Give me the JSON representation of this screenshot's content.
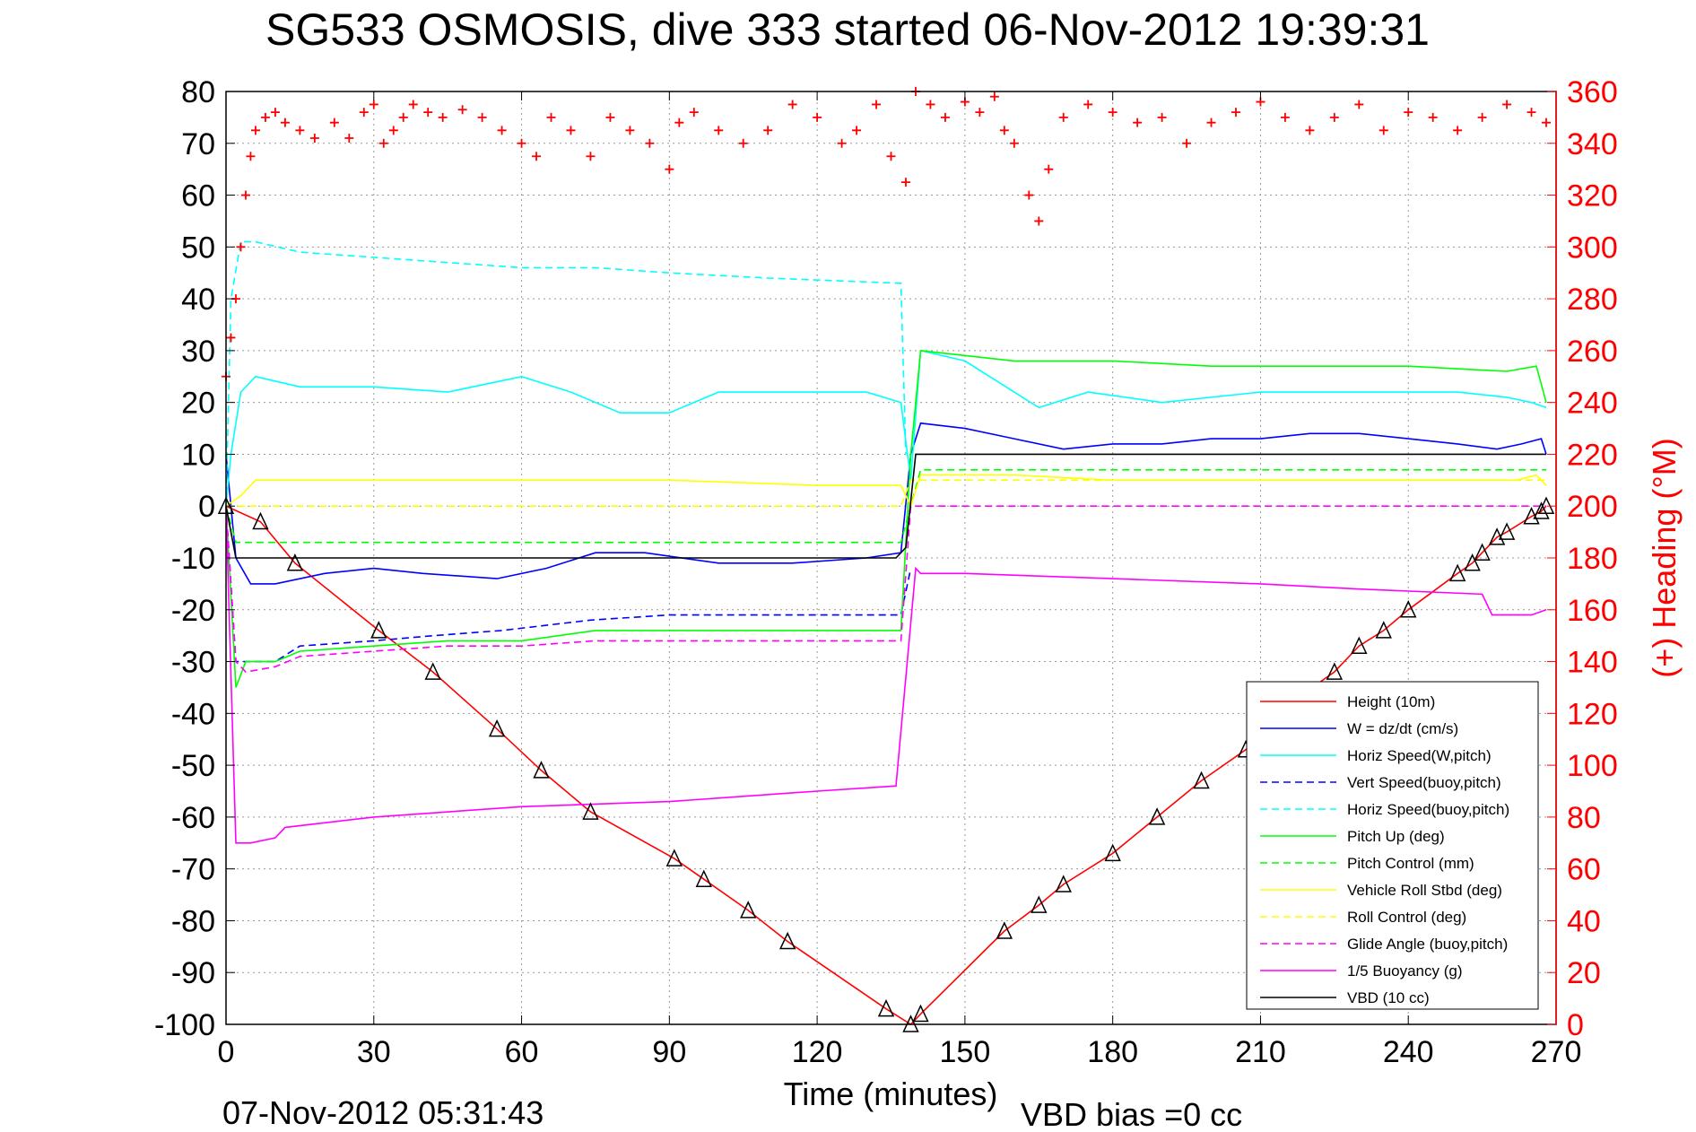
{
  "chart_data": {
    "type": "line",
    "title": "SG533 OSMOSIS, dive 333 started 06-Nov-2012 19:39:31",
    "xlabel": "Time (minutes)",
    "ylabel": "",
    "ylabel_right": "(+) Heading (°M)",
    "xlim": [
      0,
      270
    ],
    "ylim": [
      -100,
      80
    ],
    "ylim_right": [
      0,
      360
    ],
    "x_ticks": [
      0,
      30,
      60,
      90,
      120,
      150,
      180,
      210,
      240,
      270
    ],
    "y_ticks": [
      -100,
      -90,
      -80,
      -70,
      -60,
      -50,
      -40,
      -30,
      -20,
      -10,
      0,
      10,
      20,
      30,
      40,
      50,
      60,
      70,
      80
    ],
    "y_ticks_right": [
      0,
      20,
      40,
      60,
      80,
      100,
      120,
      140,
      160,
      180,
      200,
      220,
      240,
      260,
      280,
      300,
      320,
      340,
      360
    ],
    "grid": true,
    "legend_position": "bottom-right",
    "end_time_label": "07-Nov-2012 05:31:43",
    "vbd_bias_label": "VBD bias =0 cc",
    "series": [
      {
        "name": "Height (10m)",
        "color": "#ff0000",
        "style": "solid",
        "x": [
          0,
          7,
          14,
          31,
          42,
          55,
          64,
          74,
          91,
          97,
          106,
          114,
          134,
          139,
          141,
          158,
          165,
          170,
          180,
          189,
          198,
          207,
          216,
          225,
          230,
          235,
          240,
          250,
          253,
          255,
          258,
          260,
          265,
          267,
          268
        ],
        "y": [
          0,
          -3,
          -11,
          -24,
          -32,
          -43,
          -51,
          -59,
          -68,
          -72,
          -78,
          -84,
          -97,
          -100,
          -98,
          -82,
          -77,
          -73,
          -67,
          -60,
          -53,
          -47,
          -38,
          -32,
          -27,
          -24,
          -20,
          -13,
          -11,
          -9,
          -6,
          -5,
          -2,
          -1,
          0
        ]
      },
      {
        "name": "W = dz/dt (cm/s)",
        "color": "#0000ff",
        "style": "solid",
        "x": [
          0,
          2,
          5,
          10,
          20,
          30,
          40,
          55,
          65,
          75,
          85,
          100,
          115,
          130,
          137,
          139,
          141,
          150,
          160,
          170,
          180,
          190,
          200,
          210,
          220,
          230,
          240,
          250,
          258,
          263,
          267,
          268
        ],
        "y": [
          10,
          -10,
          -15,
          -15,
          -13,
          -12,
          -13,
          -14,
          -12,
          -9,
          -9,
          -11,
          -11,
          -10,
          -9,
          10,
          16,
          15,
          13,
          11,
          12,
          12,
          13,
          13,
          14,
          14,
          13,
          12,
          11,
          12,
          13,
          10
        ]
      },
      {
        "name": "Horiz Speed(W,pitch)",
        "color": "#00ffff",
        "style": "solid",
        "x": [
          0,
          1,
          3,
          6,
          15,
          30,
          45,
          60,
          70,
          80,
          90,
          100,
          115,
          130,
          137,
          139,
          141,
          150,
          160,
          165,
          175,
          190,
          210,
          230,
          250,
          260,
          265,
          268
        ],
        "y": [
          0,
          10,
          22,
          25,
          23,
          23,
          22,
          25,
          22,
          18,
          18,
          22,
          22,
          22,
          20,
          5,
          30,
          28,
          22,
          19,
          22,
          20,
          22,
          22,
          22,
          21,
          20,
          19
        ]
      },
      {
        "name": "Vert Speed(buoy,pitch)",
        "color": "#0000ff",
        "style": "dashed",
        "x": [
          0,
          2,
          4,
          10,
          15,
          30,
          42,
          56,
          74,
          90,
          110,
          137,
          139
        ],
        "y": [
          0,
          -30,
          -30,
          -30,
          -27,
          -26,
          -25,
          -24,
          -22,
          -21,
          -21,
          -21,
          -12
        ]
      },
      {
        "name": "Horiz Speed(buoy,pitch)",
        "color": "#00ffff",
        "style": "dashed",
        "x": [
          0,
          1,
          3,
          6,
          15,
          30,
          45,
          60,
          75,
          90,
          110,
          137,
          138
        ],
        "y": [
          0,
          40,
          51,
          51,
          49,
          48,
          47,
          46,
          46,
          45,
          44,
          43,
          10
        ]
      },
      {
        "name": "Pitch Up (deg)",
        "color": "#00ff00",
        "style": "solid",
        "x": [
          0,
          2,
          4,
          10,
          15,
          30,
          45,
          60,
          75,
          90,
          110,
          137,
          139,
          141,
          160,
          180,
          200,
          220,
          240,
          260,
          266,
          268
        ],
        "y": [
          0,
          -35,
          -30,
          -30,
          -28,
          -27,
          -26,
          -26,
          -24,
          -24,
          -24,
          -24,
          10,
          30,
          28,
          28,
          27,
          27,
          27,
          26,
          27,
          20
        ]
      },
      {
        "name": "Pitch Control (mm)",
        "color": "#00ff00",
        "style": "dashed",
        "x": [
          0,
          2,
          8,
          60,
          120,
          137,
          139,
          141,
          200,
          268
        ],
        "y": [
          0,
          -7,
          -7,
          -7,
          -7,
          -7,
          0,
          7,
          7,
          7
        ]
      },
      {
        "name": "Vehicle Roll Stbd (deg)",
        "color": "#ffff00",
        "style": "solid",
        "x": [
          0,
          3,
          6,
          30,
          60,
          90,
          120,
          137,
          139,
          141,
          160,
          180,
          200,
          230,
          250,
          262,
          266,
          268
        ],
        "y": [
          0,
          2,
          5,
          5,
          5,
          5,
          4,
          4,
          0,
          6,
          6,
          5,
          5,
          5,
          5,
          5,
          6,
          4
        ]
      },
      {
        "name": "Roll Control (deg)",
        "color": "#ffff00",
        "style": "dashed",
        "x": [
          0,
          137,
          139,
          268
        ],
        "y": [
          0,
          0,
          5,
          5
        ]
      },
      {
        "name": "Glide Angle (buoy,pitch)",
        "color": "#ff00ff",
        "style": "dashed",
        "x": [
          0,
          2,
          4,
          10,
          15,
          30,
          45,
          60,
          75,
          90,
          110,
          137,
          139,
          141,
          268
        ],
        "y": [
          0,
          -30,
          -32,
          -31,
          -29,
          -28,
          -27,
          -27,
          -26,
          -26,
          -26,
          -26,
          0,
          0,
          0
        ]
      },
      {
        "name": "1/5 Buoyancy (g)",
        "color": "#ff00ff",
        "style": "solid",
        "x": [
          0,
          2,
          5,
          10,
          12,
          30,
          60,
          90,
          120,
          136,
          140,
          141,
          150,
          180,
          210,
          230,
          255,
          257,
          265,
          268
        ],
        "y": [
          0,
          -65,
          -65,
          -64,
          -62,
          -60,
          -58,
          -57,
          -55,
          -54,
          -12,
          -13,
          -13,
          -14,
          -15,
          -16,
          -17,
          -21,
          -21,
          -20
        ]
      },
      {
        "name": "VBD (10 cc)",
        "color": "#000000",
        "style": "solid",
        "x": [
          0,
          2,
          4,
          136,
          138,
          140,
          141,
          268
        ],
        "y": [
          0,
          -10,
          -10,
          -10,
          -8,
          10,
          10,
          10
        ]
      }
    ],
    "heading_series": {
      "name": "(+) Heading (°M)",
      "color": "#ff0000",
      "marker": "+",
      "x": [
        0,
        1,
        2,
        3,
        4,
        5,
        6,
        8,
        10,
        12,
        15,
        18,
        22,
        25,
        28,
        30,
        32,
        34,
        36,
        38,
        41,
        44,
        48,
        52,
        56,
        60,
        63,
        66,
        70,
        74,
        78,
        82,
        86,
        90,
        92,
        95,
        100,
        105,
        110,
        115,
        120,
        125,
        128,
        132,
        135,
        138,
        140,
        143,
        146,
        150,
        153,
        156,
        158,
        160,
        163,
        165,
        167,
        170,
        175,
        180,
        185,
        190,
        195,
        200,
        205,
        210,
        215,
        220,
        225,
        230,
        235,
        240,
        245,
        250,
        255,
        260,
        265,
        268
      ],
      "y": [
        250,
        265,
        280,
        300,
        320,
        335,
        345,
        350,
        352,
        348,
        345,
        342,
        348,
        342,
        352,
        355,
        340,
        345,
        350,
        355,
        352,
        350,
        353,
        350,
        345,
        340,
        335,
        350,
        345,
        335,
        350,
        345,
        340,
        330,
        348,
        352,
        345,
        340,
        345,
        355,
        350,
        340,
        345,
        355,
        335,
        325,
        360,
        355,
        350,
        356,
        352,
        358,
        345,
        340,
        320,
        310,
        330,
        350,
        355,
        352,
        348,
        350,
        340,
        348,
        352,
        356,
        350,
        345,
        350,
        355,
        345,
        352,
        350,
        345,
        350,
        355,
        352,
        348
      ]
    }
  }
}
